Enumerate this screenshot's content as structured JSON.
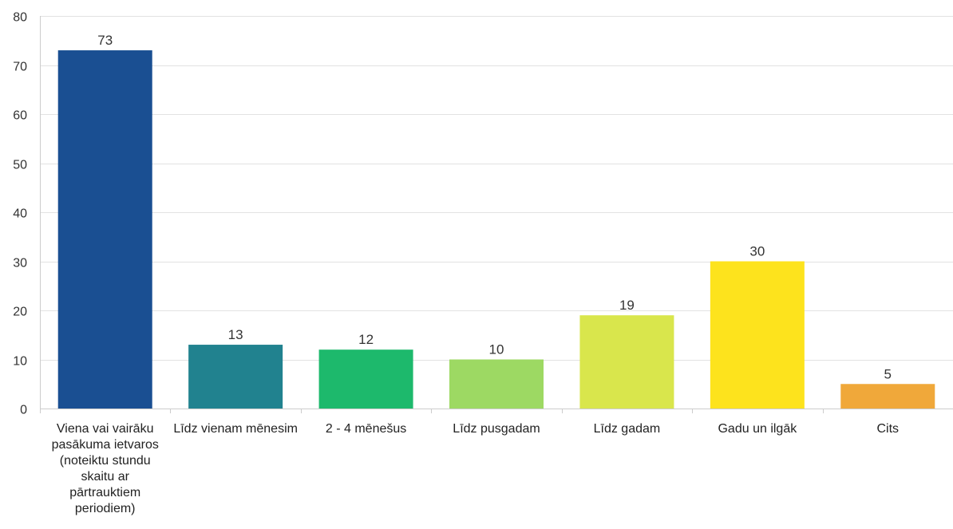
{
  "chart_data": {
    "type": "bar",
    "title": "",
    "xlabel": "",
    "ylabel": "",
    "ylim": [
      0,
      80
    ],
    "yticks": [
      0,
      10,
      20,
      30,
      40,
      50,
      60,
      70,
      80
    ],
    "grid": true,
    "legend": "none",
    "categories": [
      [
        "Viena vai vairāku",
        "pasākuma ietvaros",
        "(noteiktu stundu",
        "skaitu ar",
        "pārtrauktiem",
        "periodiem)"
      ],
      [
        "Līdz vienam mēnesim"
      ],
      [
        "2 - 4 mēnešus"
      ],
      [
        "Līdz pusgadam"
      ],
      [
        "Līdz gadam"
      ],
      [
        "Gadu un ilgāk"
      ],
      [
        "Cits"
      ]
    ],
    "values": [
      73,
      13,
      12,
      10,
      19,
      30,
      5
    ],
    "colors": [
      "#1a4f92",
      "#21828f",
      "#1db96c",
      "#9dd963",
      "#d9e64c",
      "#fde31d",
      "#f0a83a"
    ]
  }
}
